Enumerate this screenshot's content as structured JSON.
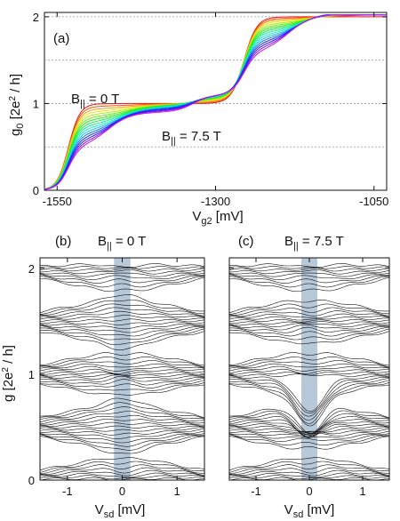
{
  "chart_data": [
    {
      "panel": "(a)",
      "type": "line",
      "xlabel": "V_g2 [mV]",
      "ylabel": "g_0 [2e^2 / h]",
      "xlim": [
        -1570,
        -1030
      ],
      "ylim": [
        0,
        2.05
      ],
      "xticks": [
        "-1550",
        "-1300",
        "-1050"
      ],
      "yticks": [
        "0",
        "1",
        "2"
      ],
      "grid": "horizontal dashed at 0.5 steps",
      "annotations": [
        "B_|| = 0 T",
        "B_|| = 7.5 T"
      ],
      "field_range_T": [
        0,
        7.5
      ],
      "curve_count": 16,
      "color_scale": "rainbow from red (0 T) to magenta/blue (7.5 T)",
      "series_endpoints": [
        {
          "field_T": 0,
          "x": [
            -1570,
            -1550,
            -1530,
            -1500,
            -1450,
            -1400,
            -1350,
            -1300,
            -1270,
            -1250,
            -1220,
            -1180,
            -1140,
            -1100,
            -1070,
            -1030
          ],
          "y": [
            0.0,
            0.02,
            0.3,
            0.62,
            0.85,
            0.97,
            1.0,
            1.0,
            1.05,
            1.45,
            1.8,
            1.95,
            1.99,
            2.0,
            2.0,
            2.02
          ]
        },
        {
          "field_T": 7.5,
          "x": [
            -1570,
            -1550,
            -1530,
            -1500,
            -1450,
            -1400,
            -1350,
            -1300,
            -1270,
            -1250,
            -1220,
            -1180,
            -1140,
            -1100,
            -1070,
            -1030
          ],
          "y": [
            0.0,
            0.02,
            0.25,
            0.48,
            0.52,
            0.6,
            0.85,
            1.0,
            1.05,
            1.35,
            1.5,
            1.55,
            1.6,
            1.85,
            1.97,
            2.02
          ]
        }
      ]
    },
    {
      "panel": "(b)",
      "type": "line",
      "title": "B_|| = 0 T",
      "xlabel": "V_sd [mV]",
      "ylabel": "g [2e^2 / h]",
      "xlim": [
        -1.5,
        1.5
      ],
      "ylim": [
        0,
        2.1
      ],
      "xticks": [
        "-1",
        "0",
        "1"
      ],
      "yticks": [
        "0",
        "1",
        "2"
      ],
      "highlight_band": [
        -0.15,
        0.15
      ],
      "curve_count": 60,
      "description_levels": [
        2.0,
        1.0,
        0.9,
        0.3
      ]
    },
    {
      "panel": "(c)",
      "type": "line",
      "title": "B_|| = 7.5 T",
      "xlabel": "V_sd [mV]",
      "xlim": [
        -1.5,
        1.5
      ],
      "ylim": [
        0,
        2.1
      ],
      "xticks": [
        "-1",
        "0",
        "1"
      ],
      "highlight_band": [
        -0.15,
        0.15
      ],
      "curve_count": 60
    }
  ],
  "colors": {
    "band": "#9fb6cc",
    "trace": "#111111",
    "grid": "#9a9a9a"
  }
}
